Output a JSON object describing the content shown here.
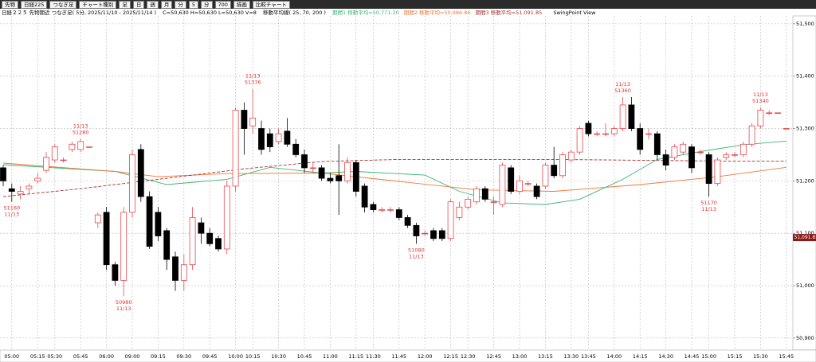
{
  "toolbar": [
    "先物",
    "日経225",
    "つなぎ足",
    "チャート種別",
    "足",
    "日",
    "週",
    "月",
    "分",
    "5",
    "分",
    "700",
    "描画",
    "比較チャート"
  ],
  "chart_data": {
    "type": "candlestick",
    "title": "日経２２５ 先物期近 つなぎ足( 5分, 2025/11/10 - 2025/11/14 )",
    "info": "C=50,630 H=50,630 L=50,630 V=8",
    "ma_title": "移動平均線( 25, 70, 200 )",
    "footer": "SwingPoint View",
    "categories": [
      null,
      "05:00",
      null,
      null,
      "05:15",
      null,
      "05:30",
      null,
      null,
      "05:45",
      null,
      null,
      "06:00",
      null,
      null,
      "09:00",
      null,
      null,
      "09:15",
      null,
      null,
      "09:30",
      null,
      null,
      "09:45",
      null,
      null,
      "10:00",
      null,
      "10:15",
      null,
      null,
      "10:30",
      null,
      null,
      "10:45",
      null,
      null,
      "11:00",
      null,
      null,
      "11:15",
      null,
      "11:30",
      null,
      null,
      "11:45",
      null,
      null,
      "12:00",
      null,
      null,
      "12:15",
      null,
      "12:30",
      null,
      null,
      "12:45",
      null,
      null,
      "13:00",
      null,
      null,
      "13:15",
      null,
      null,
      "13:30",
      null,
      "13:45",
      null,
      null,
      "14:00",
      null,
      null,
      "14:15",
      null,
      null,
      "14:30",
      null,
      null,
      "14:45",
      null,
      "15:00",
      null,
      null,
      "15:15",
      null,
      null,
      "15:30",
      null,
      null,
      "15:45"
    ],
    "open": [
      51225,
      51185,
      51175,
      51185,
      51200,
      51220,
      51240,
      51240,
      51260,
      51260,
      51265,
      51120,
      51140,
      51040,
      51010,
      51140,
      51260,
      51170,
      51140,
      51105,
      51055,
      51010,
      51040,
      51120,
      51100,
      51090,
      51070,
      51190,
      51335,
      51305,
      51300,
      51290,
      51275,
      51295,
      51270,
      51250,
      51225,
      51225,
      51205,
      51210,
      51200,
      51235,
      51190,
      51155,
      51145,
      51145,
      51145,
      51130,
      51115,
      51100,
      51105,
      51105,
      51090,
      51130,
      51150,
      51160,
      51185,
      51160,
      51155,
      51225,
      51180,
      51195,
      51190,
      51190,
      51230,
      51210,
      51240,
      51255,
      51310,
      51290,
      51290,
      51290,
      51300,
      51345,
      51300,
      51290,
      51290,
      51250,
      51245,
      51255,
      51265,
      51255,
      51250,
      51195,
      51245,
      51250,
      51250,
      51270,
      51305,
      51330,
      51330,
      51300
    ],
    "high": [
      51230,
      51195,
      51190,
      51195,
      51215,
      51255,
      51270,
      51245,
      51275,
      51280,
      51265,
      51140,
      51150,
      51045,
      51150,
      51260,
      51270,
      51180,
      51150,
      51110,
      51065,
      51060,
      51150,
      51130,
      51110,
      51095,
      51200,
      51340,
      51350,
      51376,
      51315,
      51300,
      51300,
      51320,
      51280,
      51260,
      51235,
      51230,
      51215,
      51270,
      51245,
      51240,
      51195,
      51160,
      51150,
      51150,
      51150,
      51135,
      51120,
      51105,
      51110,
      51110,
      51165,
      51160,
      51170,
      51190,
      51190,
      51170,
      51235,
      51230,
      51210,
      51200,
      51195,
      51235,
      51265,
      51255,
      51260,
      51305,
      51315,
      51295,
      51310,
      51305,
      51360,
      51360,
      51310,
      51300,
      51295,
      51260,
      51270,
      51275,
      51270,
      51260,
      51255,
      51245,
      51255,
      51255,
      51275,
      51310,
      51340,
      51335,
      51330,
      51300
    ],
    "low": [
      51190,
      51160,
      51165,
      51175,
      51195,
      51215,
      51235,
      51235,
      51255,
      51255,
      51265,
      51110,
      51030,
      51000,
      50980,
      51130,
      51160,
      51070,
      51085,
      51030,
      50990,
      50990,
      51030,
      51080,
      51075,
      51065,
      51060,
      51180,
      51250,
      51290,
      51250,
      51255,
      51270,
      51265,
      51245,
      51215,
      51215,
      51200,
      51195,
      51135,
      51195,
      51170,
      51140,
      51140,
      51140,
      51140,
      51125,
      51110,
      51080,
      51095,
      51085,
      51085,
      51085,
      51125,
      51145,
      51155,
      51160,
      51135,
      51150,
      51175,
      51175,
      51190,
      51165,
      51185,
      51205,
      51205,
      51235,
      51250,
      51285,
      51285,
      51285,
      51285,
      51295,
      51295,
      51250,
      51280,
      51240,
      51220,
      51240,
      51250,
      51215,
      51250,
      51170,
      51190,
      51240,
      51245,
      51245,
      51265,
      51300,
      51325,
      51330,
      51300
    ],
    "close": [
      51200,
      51180,
      51180,
      51190,
      51205,
      51245,
      51265,
      51240,
      51270,
      51275,
      51265,
      51135,
      51040,
      51010,
      51140,
      51250,
      51170,
      51075,
      51095,
      51050,
      51010,
      51040,
      51130,
      51100,
      51080,
      51070,
      51190,
      51335,
      51300,
      51320,
      51260,
      51265,
      51290,
      51270,
      51250,
      51225,
      51225,
      51205,
      51200,
      51200,
      51235,
      51180,
      51150,
      51145,
      51145,
      51145,
      51130,
      51115,
      51095,
      51100,
      51090,
      51090,
      51160,
      51150,
      51165,
      51185,
      51165,
      51160,
      51230,
      51180,
      51200,
      51195,
      51170,
      51230,
      51210,
      51250,
      51255,
      51300,
      51290,
      51290,
      51290,
      51300,
      51345,
      51300,
      51260,
      51290,
      51250,
      51230,
      51265,
      51270,
      51225,
      51255,
      51195,
      51240,
      51250,
      51250,
      51270,
      51305,
      51335,
      51330,
      51330,
      51300
    ],
    "up_color": "#e8474c",
    "down_color": "#000000",
    "label_color": "#e03030",
    "moving_averages": [
      {
        "name": "期間1 移動平均=50,771.20",
        "color": "#3cb371",
        "dashed": false,
        "x": [
          0,
          13,
          19,
          26,
          31,
          37,
          41,
          49,
          53,
          58,
          63,
          67,
          72,
          76,
          81,
          86,
          91
        ],
        "values": [
          51231,
          51218,
          51193,
          51203,
          51226,
          51215,
          51218,
          51211,
          51180,
          51158,
          51155,
          51165,
          51203,
          51241,
          51256,
          51269,
          51276
        ]
      },
      {
        "name": "期間2 移動平均=50,986.86",
        "color": "#f07838",
        "dashed": false,
        "x": [
          0,
          13,
          18,
          26,
          37,
          46,
          55,
          64,
          74,
          83,
          91
        ],
        "values": [
          51234,
          51218,
          51208,
          51214,
          51215,
          51199,
          51183,
          51180,
          51193,
          51208,
          51226
        ]
      },
      {
        "name": "期間3 移動平均=51,091.85",
        "color": "#a83232",
        "dashed": true,
        "x": [
          0,
          9,
          18,
          28,
          37,
          46,
          64,
          83,
          91
        ],
        "values": [
          51170,
          51185,
          51203,
          51223,
          51237,
          51241,
          51241,
          51238,
          51238
        ]
      }
    ],
    "swing_points": [
      {
        "index": 1,
        "value": 51160,
        "date": "11/13",
        "position": "below"
      },
      {
        "index": 9,
        "value": 51280,
        "date": "11/13",
        "position": "above"
      },
      {
        "index": 14,
        "value": 50980,
        "date": "11/13",
        "position": "below"
      },
      {
        "index": 29,
        "value": 51376,
        "date": "11/13",
        "position": "above"
      },
      {
        "index": 48,
        "value": 51080,
        "date": "11/13",
        "position": "below"
      },
      {
        "index": 72,
        "value": 51360,
        "date": "11/13",
        "position": "above"
      },
      {
        "index": 82,
        "value": 51170,
        "date": "11/13",
        "position": "below"
      },
      {
        "index": 88,
        "value": 51340,
        "date": "11/13",
        "position": "above"
      }
    ],
    "last_price": {
      "value": 51091.85,
      "label": "51,091.85"
    },
    "ylim": [
      50877,
      51515
    ],
    "yticks": [
      {
        "value": 50900,
        "label": "50,900"
      },
      {
        "value": 51000,
        "label": "51,000"
      },
      {
        "value": 51100,
        "label": "51,100"
      },
      {
        "value": 51200,
        "label": "51,200"
      },
      {
        "value": 51300,
        "label": "51,300"
      },
      {
        "value": 51400,
        "label": "51,400"
      },
      {
        "value": 51500,
        "label": "51,500"
      }
    ],
    "grid": true
  }
}
